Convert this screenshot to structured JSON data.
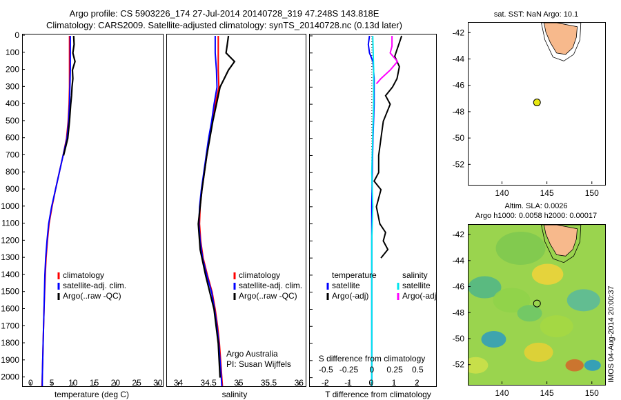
{
  "title_line1": "Argo profile: CS 5903226_174 27-Jul-2014 20140728_319 47.248S 143.818E",
  "title_line2": "Climatology: CARS2009. Satellite-adjusted climatology: synTS_20140728.nc (0.13d later)",
  "colors": {
    "climatology": "#ff0000",
    "satellite": "#0000ff",
    "argo": "#000000",
    "t_sat": "#00e5ee",
    "s_sat": "#00e5ee",
    "s_argo": "#ff00ff",
    "land": "#f7b98c"
  },
  "chart_data": [
    {
      "type": "line",
      "name": "temperature-panel",
      "xlabel": "temperature (deg C)",
      "xticks": [
        "0",
        "5",
        "10",
        "15",
        "20",
        "25",
        "30"
      ],
      "xlim": [
        -2,
        31
      ],
      "ylim": [
        0,
        2050
      ],
      "yticks": [
        "0",
        "100",
        "200",
        "300",
        "400",
        "500",
        "600",
        "700",
        "800",
        "900",
        "1000",
        "1100",
        "1200",
        "1300",
        "1400",
        "1500",
        "1600",
        "1700",
        "1800",
        "1900",
        "2000"
      ],
      "legend": [
        "climatology",
        "satellite-adj. clim.",
        "Argo(..raw -QC)"
      ],
      "series": [
        {
          "name": "climatology",
          "depth": [
            0,
            100,
            200,
            300,
            400,
            500,
            600,
            700,
            800,
            900,
            1000,
            1100,
            1200,
            1300,
            1400,
            1600,
            1800,
            2000,
            2050
          ],
          "values": [
            9.0,
            9.0,
            9.0,
            9.0,
            8.9,
            8.7,
            8.3,
            7.5,
            6.6,
            5.7,
            4.9,
            4.2,
            3.8,
            3.5,
            3.3,
            3.0,
            2.8,
            2.6,
            2.5
          ]
        },
        {
          "name": "satellite-adj. clim.",
          "depth": [
            0,
            100,
            200,
            300,
            400,
            500,
            600,
            700,
            800,
            900,
            1000,
            1100,
            1200,
            1300,
            1400,
            1600,
            1800,
            2000,
            2050
          ],
          "values": [
            9.2,
            9.2,
            9.2,
            9.1,
            9.0,
            8.8,
            8.4,
            7.5,
            6.6,
            5.7,
            4.8,
            4.1,
            3.7,
            3.4,
            3.2,
            3.0,
            2.8,
            2.6,
            2.6
          ]
        },
        {
          "name": "Argo(..raw -QC)",
          "depth": [
            0,
            50,
            100,
            150,
            200,
            250,
            300,
            350,
            400,
            500,
            600,
            700
          ],
          "values": [
            10.0,
            10.1,
            9.8,
            10.3,
            9.7,
            9.8,
            9.6,
            9.5,
            9.3,
            9.0,
            8.6,
            7.6
          ]
        }
      ]
    },
    {
      "type": "line",
      "name": "salinity-panel",
      "xlabel": "salinity",
      "xticks": [
        "34",
        "34.5",
        "35",
        "35.5",
        "36"
      ],
      "xlim": [
        33.8,
        36.1
      ],
      "ylim": [
        0,
        2050
      ],
      "legend": [
        "climatology",
        "satellite-adj. clim.",
        "Argo(..raw -QC)"
      ],
      "annotation": [
        "Argo Australia",
        "PI: Susan Wijffels"
      ],
      "series": [
        {
          "name": "climatology",
          "depth": [
            0,
            100,
            200,
            300,
            400,
            500,
            600,
            700,
            800,
            900,
            1000,
            1100,
            1200,
            1300,
            1400,
            1500,
            1600,
            1700,
            1800,
            1900,
            2000,
            2050
          ],
          "values": [
            34.65,
            34.65,
            34.65,
            34.66,
            34.6,
            34.55,
            34.5,
            34.46,
            34.42,
            34.38,
            34.35,
            34.34,
            34.36,
            34.4,
            34.47,
            34.55,
            34.6,
            34.64,
            34.67,
            34.69,
            34.71,
            34.72
          ]
        },
        {
          "name": "satellite-adj. clim.",
          "depth": [
            0,
            100,
            200,
            300,
            400,
            500,
            600,
            700,
            800,
            900,
            1000,
            1100,
            1200,
            1300,
            1400,
            1500,
            1600,
            1700,
            1800,
            1900,
            2000,
            2050
          ],
          "values": [
            34.6,
            34.6,
            34.62,
            34.63,
            34.58,
            34.54,
            34.49,
            34.45,
            34.41,
            34.37,
            34.34,
            34.33,
            34.35,
            34.39,
            34.46,
            34.54,
            34.59,
            34.63,
            34.66,
            34.68,
            34.7,
            34.71
          ]
        },
        {
          "name": "Argo(..raw -QC)",
          "depth": [
            0,
            50,
            100,
            150,
            200,
            250,
            300,
            400,
            500,
            700,
            900,
            1100,
            1250,
            1400,
            1600,
            1800,
            2000
          ],
          "values": [
            34.82,
            34.8,
            34.78,
            34.92,
            34.82,
            34.75,
            34.68,
            34.62,
            34.56,
            34.46,
            34.38,
            34.32,
            34.35,
            34.44,
            34.58,
            34.65,
            34.68
          ]
        }
      ]
    },
    {
      "type": "line",
      "name": "difference-panel",
      "xlabel": "T difference from climatology",
      "xticks": [
        "-2",
        "-1",
        "0",
        "1",
        "2"
      ],
      "xlim": [
        -2.7,
        2.8
      ],
      "top_label": "S difference from climatology",
      "top_ticks": [
        "-0.5",
        "-0.25",
        "0",
        "0.25",
        "0.5"
      ],
      "ylim": [
        0,
        2050
      ],
      "legend_left_title": "temperature",
      "legend_right_title": "salinity",
      "legend_left": [
        "satellite",
        "Argo(-adj)"
      ],
      "legend_right": [
        "satellite",
        "Argo(-adj)"
      ],
      "series": [
        {
          "name": "T satellite",
          "depth": [
            0,
            50,
            100,
            150,
            250,
            400,
            600,
            800,
            1000,
            1200,
            1400,
            1600,
            1800,
            2000,
            2050
          ],
          "values": [
            -0.1,
            -0.15,
            -0.1,
            0.05,
            0.1,
            0.1,
            0.05,
            0.02,
            0.0,
            0.0,
            0.0,
            0.0,
            0.0,
            0.0,
            0.0
          ]
        },
        {
          "name": "T Argo(-adj)",
          "depth": [
            0,
            40,
            80,
            120,
            180,
            250,
            300,
            350,
            400,
            500,
            600,
            700,
            800,
            850,
            900,
            950,
            1000,
            1100,
            1150,
            1200,
            1250,
            1300
          ],
          "values": [
            1.3,
            1.2,
            1.1,
            1.0,
            1.2,
            1.1,
            0.9,
            0.6,
            0.8,
            0.5,
            0.4,
            0.3,
            0.3,
            0.1,
            0.4,
            0.3,
            0.2,
            0.35,
            0.6,
            0.5,
            0.7,
            0.4
          ]
        },
        {
          "name": "S satellite",
          "depth": [
            0,
            200,
            400,
            600,
            800,
            1000,
            1200,
            1400,
            1600,
            1800,
            2000,
            2050
          ],
          "values": [
            0.01,
            0.02,
            0.02,
            0.01,
            0.0,
            0.01,
            0.0,
            0.0,
            0.0,
            0.0,
            0.0,
            0.0
          ]
        },
        {
          "name": "S Argo(-adj)",
          "depth": [
            0,
            60,
            100,
            150,
            200,
            250,
            280
          ],
          "values": [
            0.22,
            0.22,
            0.2,
            0.28,
            0.2,
            0.1,
            0.05
          ]
        }
      ]
    },
    {
      "type": "scatter",
      "name": "sst-map",
      "title": "sat. SST: NaN Argo: 10.1",
      "xticks": [
        "140",
        "145",
        "150"
      ],
      "yticks": [
        "-42",
        "-44",
        "-46",
        "-48",
        "-50",
        "-52"
      ],
      "xlim": [
        136.2,
        151.4
      ],
      "ylim": [
        -53.5,
        -41.2
      ],
      "point": {
        "lon": 143.818,
        "lat": -47.248
      }
    },
    {
      "type": "heatmap",
      "name": "sla-map",
      "title": "Altim. SLA: 0.0026",
      "subtitle": "Argo h1000: 0.0058 h2000: 0.00017",
      "xticks": [
        "140",
        "145",
        "150"
      ],
      "yticks": [
        "-42",
        "-44",
        "-46",
        "-48",
        "-50",
        "-52"
      ],
      "xlim": [
        136.2,
        151.4
      ],
      "ylim": [
        -53.5,
        -41.2
      ],
      "point": {
        "lon": 143.818,
        "lat": -47.248
      }
    }
  ],
  "stamp": "IMOS 04-Aug-2014 20:00:37"
}
